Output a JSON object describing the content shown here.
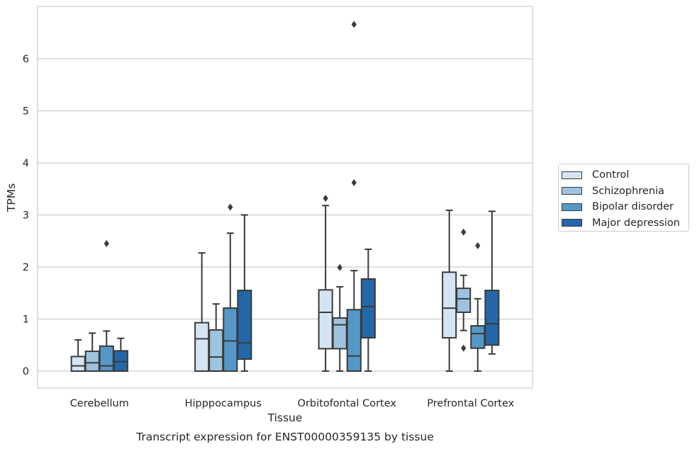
{
  "chart_data": {
    "type": "box",
    "title": "Transcript expression for ENST00000359135 by tissue",
    "xlabel": "Tissue",
    "ylabel": "TPMs",
    "ylim": [
      -0.32,
      7.1
    ],
    "yticks": [
      0,
      1,
      2,
      3,
      4,
      5,
      6
    ],
    "grid": "horizontal",
    "legend_position": "right",
    "categories": [
      "Cerebellum",
      "Hipppocampus",
      "Orbitofontal Cortex",
      "Prefrontal Cortex"
    ],
    "series": [
      {
        "name": "Control",
        "color": "#d4e4f2",
        "boxes": [
          {
            "whisker_low": 0,
            "q1": 0,
            "median": 0.1,
            "q3": 0.28,
            "whisker_high": 0.6,
            "outliers": []
          },
          {
            "whisker_low": 0,
            "q1": 0,
            "median": 0.62,
            "q3": 0.93,
            "whisker_high": 2.27,
            "outliers": []
          },
          {
            "whisker_low": 0,
            "q1": 0.43,
            "median": 1.13,
            "q3": 1.56,
            "whisker_high": 3.18,
            "outliers": [
              3.32
            ]
          },
          {
            "whisker_low": 0,
            "q1": 0.64,
            "median": 1.21,
            "q3": 1.9,
            "whisker_high": 3.09,
            "outliers": []
          }
        ]
      },
      {
        "name": "Schizophrenia",
        "color": "#9dc3de",
        "boxes": [
          {
            "whisker_low": 0,
            "q1": 0,
            "median": 0.16,
            "q3": 0.38,
            "whisker_high": 0.73,
            "outliers": []
          },
          {
            "whisker_low": 0,
            "q1": 0,
            "median": 0.27,
            "q3": 0.79,
            "whisker_high": 1.29,
            "outliers": []
          },
          {
            "whisker_low": 0,
            "q1": 0.43,
            "median": 0.89,
            "q3": 1.02,
            "whisker_high": 1.62,
            "outliers": [
              1.99
            ]
          },
          {
            "whisker_low": 0.78,
            "q1": 1.13,
            "median": 1.39,
            "q3": 1.59,
            "whisker_high": 1.84,
            "outliers": [
              2.67,
              0.44
            ]
          }
        ]
      },
      {
        "name": "Bipolar disorder",
        "color": "#5598c8",
        "boxes": [
          {
            "whisker_low": 0,
            "q1": 0,
            "median": 0.1,
            "q3": 0.48,
            "whisker_high": 0.77,
            "outliers": [
              2.45
            ]
          },
          {
            "whisker_low": 0,
            "q1": 0,
            "median": 0.58,
            "q3": 1.21,
            "whisker_high": 2.65,
            "outliers": [
              3.15
            ]
          },
          {
            "whisker_low": 0,
            "q1": 0,
            "median": 0.29,
            "q3": 1.18,
            "whisker_high": 1.93,
            "outliers": [
              3.62,
              6.66
            ]
          },
          {
            "whisker_low": 0,
            "q1": 0.44,
            "median": 0.72,
            "q3": 0.87,
            "whisker_high": 1.39,
            "outliers": [
              2.41
            ]
          }
        ]
      },
      {
        "name": "Major depression",
        "color": "#2467a9",
        "boxes": [
          {
            "whisker_low": 0,
            "q1": 0,
            "median": 0.18,
            "q3": 0.39,
            "whisker_high": 0.63,
            "outliers": []
          },
          {
            "whisker_low": 0,
            "q1": 0.23,
            "median": 0.54,
            "q3": 1.55,
            "whisker_high": 3.0,
            "outliers": []
          },
          {
            "whisker_low": 0,
            "q1": 0.64,
            "median": 1.24,
            "q3": 1.77,
            "whisker_high": 2.34,
            "outliers": []
          },
          {
            "whisker_low": 0.33,
            "q1": 0.5,
            "median": 0.91,
            "q3": 1.55,
            "whisker_high": 3.07,
            "outliers": []
          }
        ]
      }
    ]
  }
}
